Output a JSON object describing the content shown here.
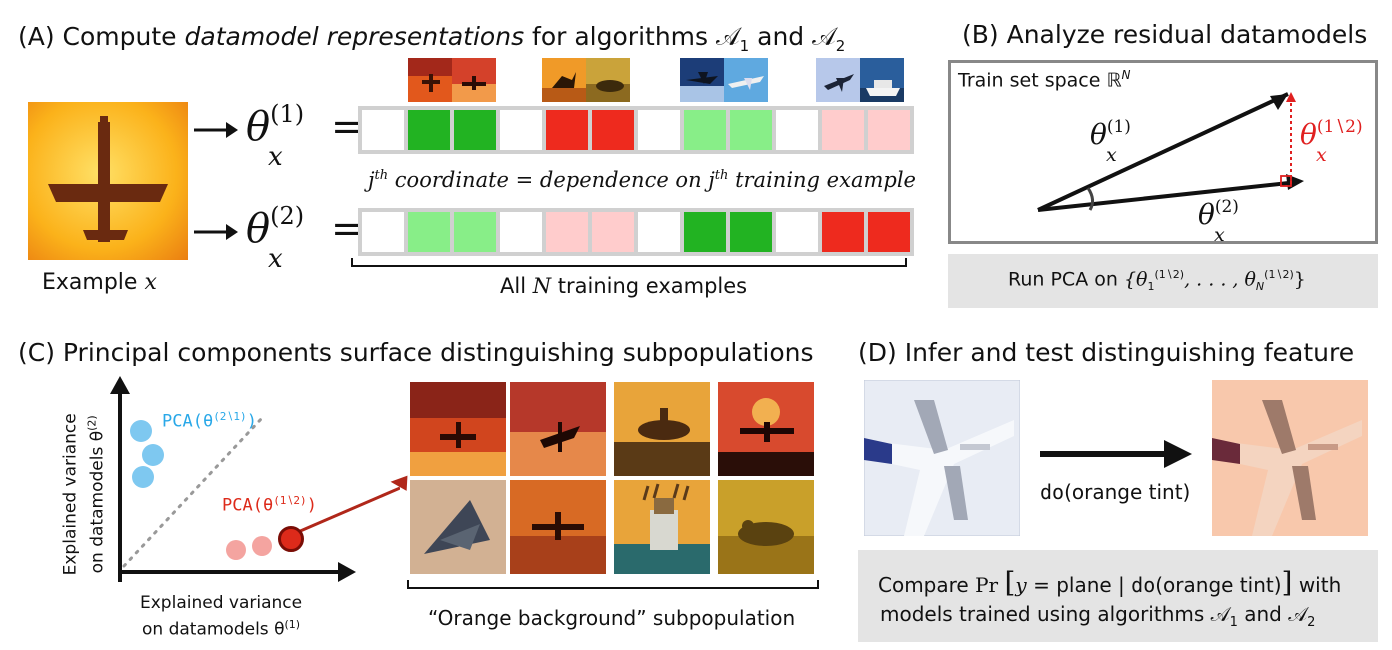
{
  "panelA": {
    "title_prefix": "(A) Compute ",
    "title_italic": "datamodel representations",
    "title_suffix": " for algorithms 𝒜",
    "alg1_sub": "1",
    "and": " and 𝒜",
    "alg2_sub": "2",
    "example_label": "Example ",
    "example_var": "x",
    "theta1": "θ",
    "theta1_sup": "(1)",
    "theta_sub": "x",
    "theta2_sup": "(2)",
    "equals": "=",
    "jth_text": "j",
    "jth_sup": "th",
    "jth_mid": " coordinate = dependence on ",
    "jth_end": " training example",
    "all_n_prefix": "All ",
    "all_n_var": "N",
    "all_n_suffix": " training examples",
    "row1_colors": [
      "#ffffff",
      "#22b322",
      "#22b322",
      "#ffffff",
      "#ee2a1e",
      "#ee2a1e",
      "#ffffff",
      "#88ee88",
      "#88ee88",
      "#ffffff",
      "#ffcccc",
      "#ffcccc"
    ],
    "row2_colors": [
      "#ffffff",
      "#88ee88",
      "#88ee88",
      "#ffffff",
      "#ffcccc",
      "#ffcccc",
      "#ffffff",
      "#22b322",
      "#22b322",
      "#ffffff",
      "#ee2a1e",
      "#ee2a1e"
    ]
  },
  "panelB": {
    "title": "(B) Analyze residual datamodels",
    "space_label": "Train set space ℝ",
    "space_sup": "N",
    "theta1": "θ",
    "theta1_sup": "(1)",
    "theta_sub": "x",
    "theta2_sup": "(2)",
    "residual_sup": "(1∖2)",
    "residual_color": "#e02020",
    "pca_prefix": "Run PCA on ",
    "pca_set": "{θ",
    "pca_first_sub": "1",
    "pca_sup": "(1∖2)",
    "pca_mid": ", . . . , θ",
    "pca_last_sub": "N",
    "pca_end": "}"
  },
  "panelC": {
    "title": "(C) Principal components surface distinguishing subpopulations",
    "y_axis_line1": "Explained variance",
    "y_axis_line2": "on datamodels θ",
    "y_axis_sup": "(2)",
    "x_axis_line1": "Explained variance",
    "x_axis_line2": "on datamodels θ",
    "x_axis_sup": "(1)",
    "pca21_label": "PCA(θ",
    "pca21_sup": "(2∖1)",
    "pca21_end": ")",
    "pca12_label": "PCA(θ",
    "pca12_sup": "(1∖2)",
    "pca12_end": ")",
    "blue_color": "#7ec8f0",
    "pink_color": "#f4a4a0",
    "red_color": "#dd2a1a",
    "subpop_caption": "“Orange background” subpopulation"
  },
  "panelD": {
    "title": "(D) Infer and test distinguishing feature",
    "do_label": "do(orange tint)",
    "do_mono": "do",
    "do_rest": "(orange tint)",
    "compare_prefix": "Compare ",
    "compare_pr": "Pr",
    "compare_y": "y",
    "compare_eq": " = plane | ",
    "compare_do": "do",
    "compare_tint": "(orange tint)",
    "compare_with": " with",
    "line2_prefix": "models trained using algorithms 𝒜",
    "line2_sub1": "1",
    "line2_and": " and 𝒜",
    "line2_sub2": "2"
  }
}
